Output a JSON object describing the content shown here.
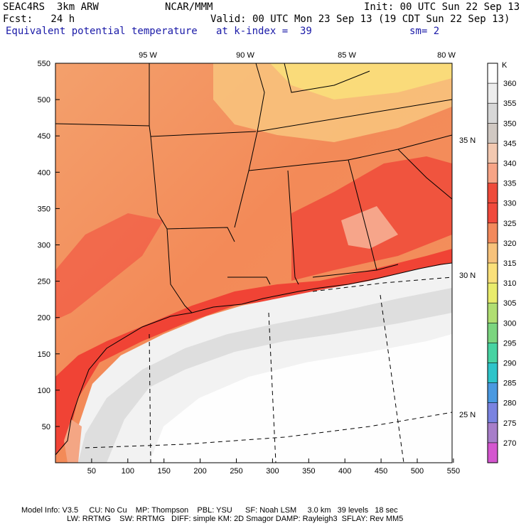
{
  "header": {
    "model": "SEAC4RS  3km ARW",
    "center": "NCAR/MMM",
    "init": "Init: 00 UTC Sun 22 Sep 13",
    "fcst": "Fcst:   24 h",
    "valid": "Valid: 00 UTC Mon 23 Sep 13 (19 CDT Sun 22 Sep 13)",
    "field": "Equivalent potential temperature",
    "level": "at k-index =  39",
    "smooth": "sm= 2"
  },
  "axes": {
    "x_ticks": [
      "50",
      "100",
      "150",
      "200",
      "250",
      "300",
      "350",
      "400",
      "450",
      "500",
      "550"
    ],
    "y_ticks": [
      "550",
      "500",
      "450",
      "400",
      "350",
      "300",
      "250",
      "200",
      "150",
      "100",
      "50"
    ],
    "lon_labels": [
      "95 W",
      "90 W",
      "85 W",
      "80 W"
    ],
    "lat_labels": [
      "35 N",
      "30 N",
      "25 N"
    ]
  },
  "colorbar": {
    "unit": "K",
    "levels": [
      "360",
      "355",
      "350",
      "345",
      "340",
      "335",
      "330",
      "325",
      "320",
      "315",
      "310",
      "305",
      "300",
      "295",
      "290",
      "285",
      "280",
      "275",
      "270"
    ],
    "colors": [
      "#ffffff",
      "#ededed",
      "#d7d7d7",
      "#d0c8c2",
      "#f2c8b0",
      "#f7a486",
      "#ee4a3a",
      "#f0493c",
      "#f2895c",
      "#f7c27b",
      "#fae07a",
      "#e9ec6c",
      "#b0de72",
      "#7bd57f",
      "#47d3a2",
      "#2ec4c9",
      "#4a99e0",
      "#7a83e0",
      "#a77ec9",
      "#d456cf"
    ]
  },
  "footer": {
    "line1": "Model Info: V3.5     CU: No Cu    MP: Thompson    PBL: YSU      SF: Noah LSM     3.0 km   39 levels   18 sec",
    "line2": "                     LW: RRTMG    SW: RRTMG   DIFF: simple KM: 2D Smagor DAMP: Rayleigh3  SFLAY: Rev MM5"
  }
}
